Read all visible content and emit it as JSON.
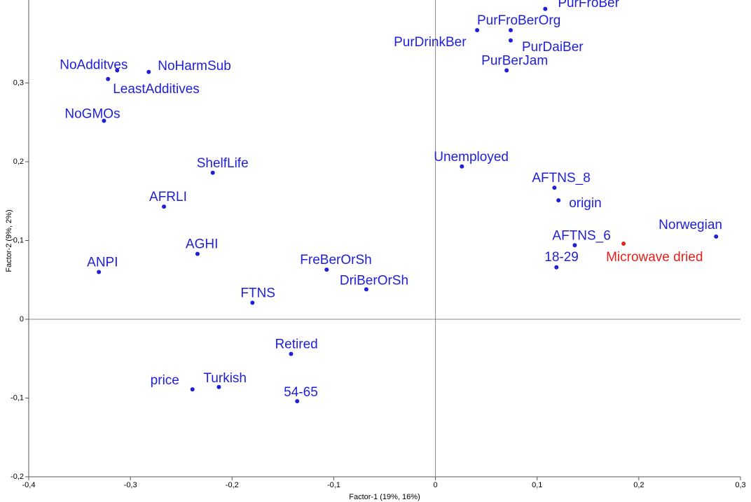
{
  "chart_data": {
    "type": "scatter",
    "xlabel": "Factor-1 (19%, 16%)",
    "ylabel": "Factor-2 (9%, 2%)",
    "xlim": [
      -0.4,
      0.3
    ],
    "ylim": [
      -0.2,
      0.4
    ],
    "xticks": [
      {
        "value": -0.4,
        "label": "-0,4"
      },
      {
        "value": -0.3,
        "label": "-0,3"
      },
      {
        "value": -0.2,
        "label": "-0,2"
      },
      {
        "value": -0.1,
        "label": "-0,1"
      },
      0,
      {
        "value": 0.1,
        "label": "0,1"
      },
      {
        "value": 0.2,
        "label": "0,2"
      },
      {
        "value": 0.3,
        "label": "0,3"
      }
    ],
    "yticks": [
      {
        "value": -0.2,
        "label": "-0,2"
      },
      {
        "value": -0.1,
        "label": "-0,1"
      },
      0,
      {
        "value": 0.1,
        "label": "0,1"
      },
      {
        "value": 0.2,
        "label": "0,2"
      },
      {
        "value": 0.3,
        "label": "0,3"
      }
    ],
    "labels": [
      "PurFroBer",
      "PurFroBerOrg",
      "PurDrinkBer",
      "PurDaiBer",
      "PurBerJam",
      "NoAdditves",
      "NoHarmSub",
      "LeastAdditives",
      "NoGMOs",
      "ShelfLife",
      "AFRLI",
      "AGHI",
      "ANPI",
      "FreBerOrSh",
      "DriBerOrSh",
      "FTNS",
      "Unemployed",
      "AFTNS_8",
      "origin",
      "Norwegian",
      "AFTNS_6",
      "Microwave dried",
      "18-29",
      "Retired",
      "price",
      "Turkish",
      "54-65"
    ],
    "x": [
      0.108,
      0.074,
      0.041,
      0.074,
      0.07,
      -0.313,
      -0.282,
      -0.322,
      -0.326,
      -0.219,
      -0.267,
      -0.234,
      -0.331,
      -0.107,
      -0.068,
      -0.18,
      0.026,
      0.117,
      0.121,
      0.276,
      0.137,
      0.185,
      0.119,
      -0.142,
      -0.239,
      -0.213,
      -0.136
    ],
    "y": [
      0.394,
      0.367,
      0.367,
      0.354,
      0.316,
      0.316,
      0.314,
      0.305,
      0.252,
      0.186,
      0.143,
      0.083,
      0.06,
      0.063,
      0.038,
      0.021,
      0.194,
      0.167,
      0.151,
      0.105,
      0.094,
      0.096,
      0.066,
      -0.044,
      -0.089,
      -0.086,
      -0.104
    ],
    "colors": [
      "#1f1fd6",
      "#1f1fd6",
      "#1f1fd6",
      "#1f1fd6",
      "#1f1fd6",
      "#1f1fd6",
      "#1f1fd6",
      "#1f1fd6",
      "#1f1fd6",
      "#1f1fd6",
      "#1f1fd6",
      "#1f1fd6",
      "#1f1fd6",
      "#1f1fd6",
      "#1f1fd6",
      "#1f1fd6",
      "#1f1fd6",
      "#1f1fd6",
      "#1f1fd6",
      "#1f1fd6",
      "#1f1fd6",
      "#e8201c",
      "#1f1fd6",
      "#1f1fd6",
      "#1f1fd6",
      "#1f1fd6",
      "#1f1fd6"
    ]
  }
}
